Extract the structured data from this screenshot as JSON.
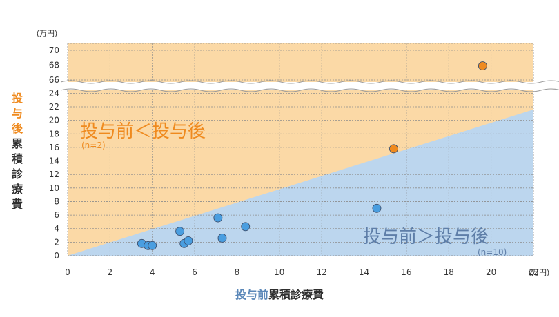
{
  "chart_data": {
    "type": "scatter",
    "x_unit": "(万円)",
    "y_unit": "(万円)",
    "x_ticks": [
      0,
      2,
      4,
      6,
      8,
      10,
      12,
      14,
      16,
      18,
      20,
      22
    ],
    "y_ticks_lower": [
      0,
      2,
      4,
      6,
      8,
      10,
      12,
      14,
      16,
      18,
      20,
      22,
      24
    ],
    "y_ticks_upper": [
      66,
      68,
      70
    ],
    "xlim": [
      0,
      22
    ],
    "ylim_lower": [
      0,
      24
    ],
    "ylim_upper": [
      66,
      70
    ],
    "axis_break": "y between 24 and 66",
    "grid": true,
    "xlabel_highlight": "投与前",
    "xlabel_rest": "累積診療費",
    "ylabel_highlight": "投与後",
    "ylabel_rest": "累積診療費",
    "regions": [
      {
        "label": "投与前＜投与後",
        "note": "(n=2)",
        "color": "#fbd9a6",
        "text_color": "#ef8a1e"
      },
      {
        "label": "投与前＞投与後",
        "note": "(n=10)",
        "color": "#bcd6ee",
        "text_color": "#5e7ea8"
      }
    ],
    "series": [
      {
        "group": "投与前＜投与後",
        "color": "#ef8a1e",
        "points": [
          [
            15.4,
            15.8
          ],
          [
            19.6,
            67.9
          ]
        ]
      },
      {
        "group": "投与前＞投与後",
        "color": "#4a9ee0",
        "points": [
          [
            3.5,
            1.8
          ],
          [
            3.8,
            1.5
          ],
          [
            4.0,
            1.5
          ],
          [
            5.3,
            3.6
          ],
          [
            5.5,
            1.8
          ],
          [
            5.7,
            2.2
          ],
          [
            7.1,
            5.6
          ],
          [
            7.3,
            2.6
          ],
          [
            8.4,
            4.3
          ],
          [
            14.6,
            7.0
          ]
        ]
      }
    ],
    "diagonal": {
      "from": [
        0,
        0
      ],
      "to": [
        22,
        21.6
      ]
    }
  }
}
